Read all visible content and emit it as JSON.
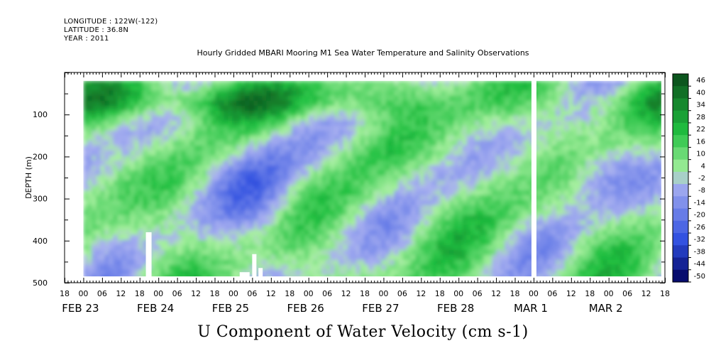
{
  "header": {
    "longitude": "LONGITUDE : 122W(-122)",
    "latitude": "LATITUDE : 36.8N",
    "year": "YEAR : 2011"
  },
  "chart_data": {
    "type": "heatmap",
    "title": "Hourly Gridded MBARI Mooring M1 Sea Water Temperature and Salinity Observations",
    "xlabel": "U Component of Water Velocity (cm s-1)",
    "ylabel": "DEPTH (m)",
    "y_range": [
      500,
      0
    ],
    "y_ticks": [
      "100",
      "200",
      "300",
      "400",
      "500"
    ],
    "x_range": [
      "2011-02-22T18:00",
      "2011-03-02T18:00"
    ],
    "x_hour_ticks": [
      "18",
      "00",
      "06",
      "12",
      "18",
      "00",
      "06",
      "12",
      "18",
      "00",
      "06",
      "12",
      "18",
      "00",
      "06",
      "12",
      "18",
      "00",
      "06",
      "12",
      "18",
      "00",
      "06",
      "12",
      "18",
      "00",
      "06",
      "12",
      "18",
      "00",
      "06",
      "12",
      "18"
    ],
    "x_day_labels": [
      "FEB 23",
      "FEB 24",
      "FEB 25",
      "FEB 26",
      "FEB 27",
      "FEB 28",
      "MAR  1",
      "MAR  2"
    ],
    "colorbar": {
      "levels": [
        "46",
        "40",
        "34",
        "28",
        "22",
        "16",
        "10",
        "4",
        "-2",
        "-8",
        "-14",
        "-20",
        "-26",
        "-32",
        "-38",
        "-44",
        "-50"
      ],
      "min": -50,
      "max": 50,
      "colors": {
        "strong_positive": "#0a4a1a",
        "positive": "#20c040",
        "weak_positive": "#a8f0a0",
        "weak_negative": "#a8b0f0",
        "negative": "#3050e0",
        "strong_negative": "#00005a"
      }
    },
    "data_start_day": "FEB 23 00",
    "data_gap_at": "MAR  1 00",
    "data_depth_range_m": [
      20,
      485
    ]
  }
}
